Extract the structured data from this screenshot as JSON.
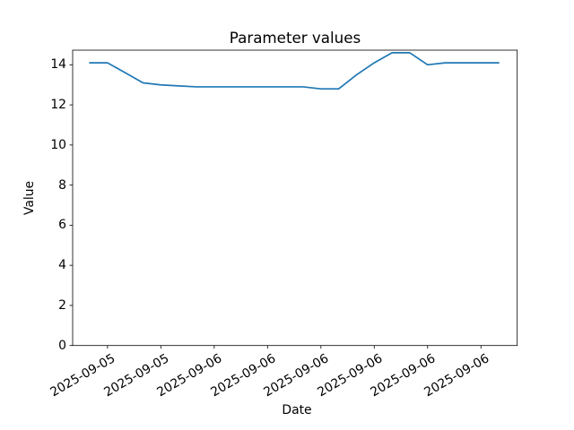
{
  "chart_data": {
    "type": "line",
    "title": "Parameter values",
    "xlabel": "Date",
    "ylabel": "Value",
    "line_color": "#1f77b4",
    "axes_edge_color": "#000000",
    "background_color": "#ffffff",
    "grid": false,
    "legend": null,
    "x_tick_rotation": 30,
    "x": [
      0,
      1,
      2,
      3,
      4,
      5,
      6,
      7,
      8,
      9,
      10,
      11,
      12,
      13,
      14,
      15,
      16,
      17,
      18,
      19,
      20,
      21,
      22,
      23
    ],
    "values": [
      14.1,
      14.1,
      13.6,
      13.1,
      13.0,
      12.95,
      12.9,
      12.9,
      12.9,
      12.9,
      12.9,
      12.9,
      12.9,
      12.8,
      12.8,
      13.5,
      14.1,
      14.6,
      14.6,
      14.0,
      14.1,
      14.1,
      14.1,
      14.1
    ],
    "x_tick_indices": [
      1,
      4,
      7,
      10,
      13,
      16,
      19,
      22
    ],
    "x_tick_labels": [
      "2025-09-05",
      "2025-09-05",
      "2025-09-06",
      "2025-09-06",
      "2025-09-06",
      "2025-09-06",
      "2025-09-06",
      "2025-09-06"
    ],
    "y_ticks": [
      0,
      2,
      4,
      6,
      8,
      10,
      12,
      14
    ],
    "ylim": [
      0,
      14.73
    ],
    "xlim": [
      -0.96,
      24.04
    ]
  }
}
